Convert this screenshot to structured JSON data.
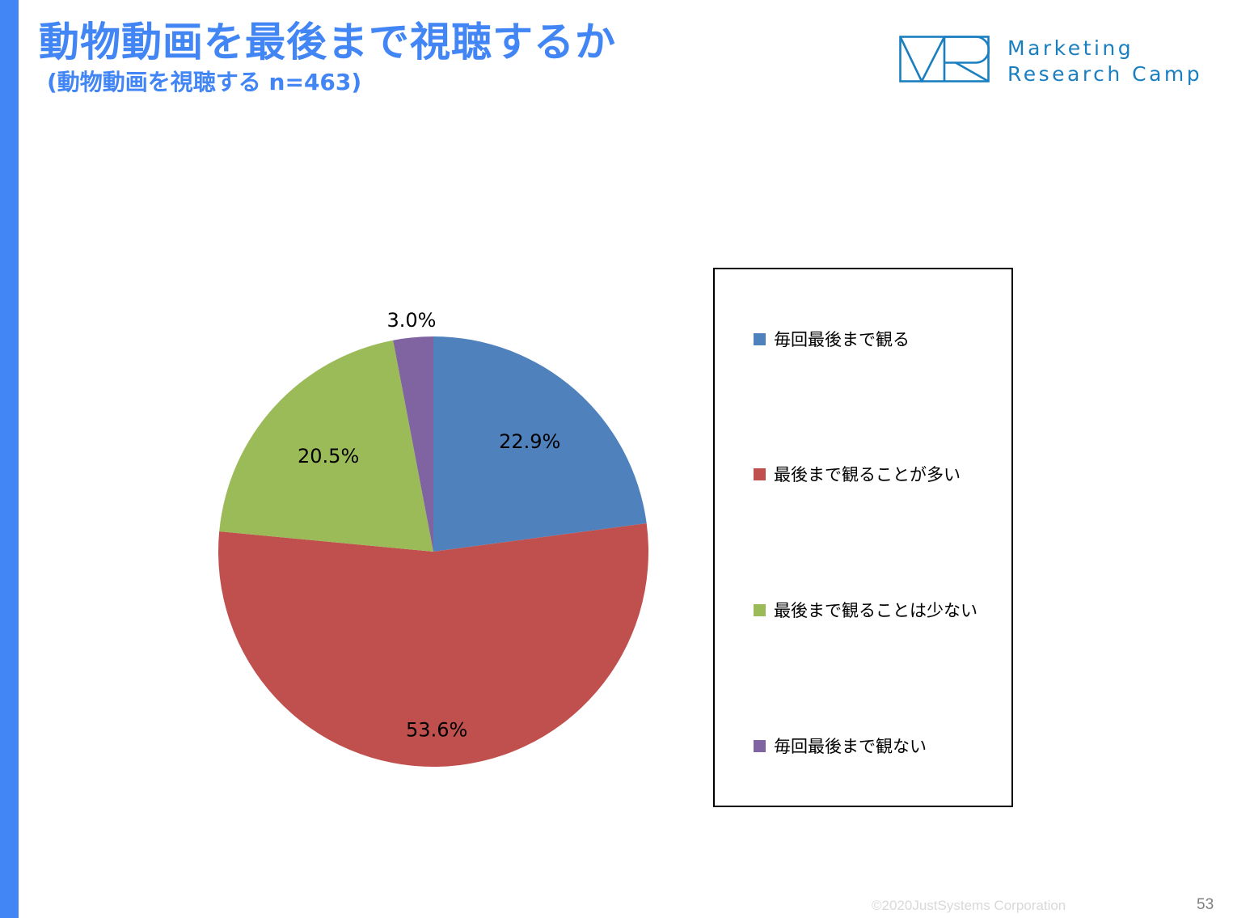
{
  "header": {
    "title": "動物動画を最後まで視聴するか",
    "subtitle": "(動物動画を視聴する n=463)"
  },
  "logo": {
    "line1": "Marketing",
    "line2": "Research Camp",
    "color": "#1a7fc0"
  },
  "colors": {
    "accent_bar": "#4285f4",
    "title": "#4285f4",
    "copyright": "#d9d9d9",
    "page_number": "#7f7f7f"
  },
  "chart_data": {
    "type": "pie",
    "categories": [
      "毎回最後まで観る",
      "最後まで観ることが多い",
      "最後まで観ることは少ない",
      "毎回最後まで観ない"
    ],
    "values": [
      22.9,
      53.6,
      20.5,
      3.0
    ],
    "labels": [
      "22.9%",
      "53.6%",
      "20.5%",
      "3.0%"
    ],
    "colors": [
      "#4f81bd",
      "#c0504d",
      "#9bbb59",
      "#8064a2"
    ],
    "legend_placement": "right",
    "start": "top, clockwise"
  },
  "footer": {
    "copyright": "©2020JustSystems Corporation",
    "page_number": "53"
  }
}
